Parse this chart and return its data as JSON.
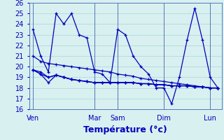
{
  "title": "",
  "xlabel": "Température (°c)",
  "background_color": "#d8f0f0",
  "grid_color": "#b8dce0",
  "line_color": "#0000bb",
  "ylim": [
    16,
    26
  ],
  "yticks": [
    16,
    17,
    18,
    19,
    20,
    21,
    22,
    23,
    24,
    25,
    26
  ],
  "x_tick_labels": [
    "Ven",
    "Mar",
    "Sam",
    "Dim",
    "Lun"
  ],
  "x_tick_positions": [
    0,
    8,
    11,
    17,
    23
  ],
  "num_points": 25,
  "series1": [
    23.5,
    21.0,
    19.5,
    25.0,
    24.0,
    25.0,
    23.0,
    22.7,
    19.5,
    19.3,
    18.5,
    23.5,
    23.0,
    21.0,
    20.0,
    19.3,
    18.0,
    18.0,
    16.5,
    19.0,
    22.5,
    25.5,
    22.5,
    19.0,
    18.0
  ],
  "series2": [
    21.0,
    20.5,
    20.3,
    20.2,
    20.1,
    20.0,
    19.9,
    19.8,
    19.7,
    19.6,
    19.5,
    19.3,
    19.2,
    19.1,
    18.9,
    18.8,
    18.7,
    18.6,
    18.5,
    18.4,
    18.3,
    18.2,
    18.1,
    18.0,
    18.0
  ],
  "series3": [
    19.7,
    19.5,
    19.0,
    19.2,
    19.0,
    18.8,
    18.7,
    18.6,
    18.5,
    18.5,
    18.5,
    18.5,
    18.5,
    18.5,
    18.4,
    18.4,
    18.3,
    18.3,
    18.2,
    18.2,
    18.2,
    18.1,
    18.1,
    18.0,
    18.0
  ],
  "series4": [
    19.7,
    19.3,
    19.0,
    19.2,
    19.0,
    18.8,
    18.7,
    18.6,
    18.5,
    18.5,
    18.5,
    18.5,
    18.5,
    18.5,
    18.4,
    18.4,
    18.3,
    18.3,
    18.2,
    18.2,
    18.2,
    18.1,
    18.1,
    18.0,
    18.0
  ],
  "series5": [
    19.7,
    19.3,
    18.5,
    19.2,
    19.0,
    18.8,
    18.7,
    18.6,
    18.5,
    18.5,
    18.5,
    18.5,
    18.5,
    18.5,
    18.4,
    18.4,
    18.3,
    18.3,
    18.2,
    18.2,
    18.2,
    18.1,
    18.1,
    18.0,
    18.0
  ],
  "xlabel_fontsize": 9,
  "tick_fontsize": 7,
  "vline_color": "#5577bb"
}
